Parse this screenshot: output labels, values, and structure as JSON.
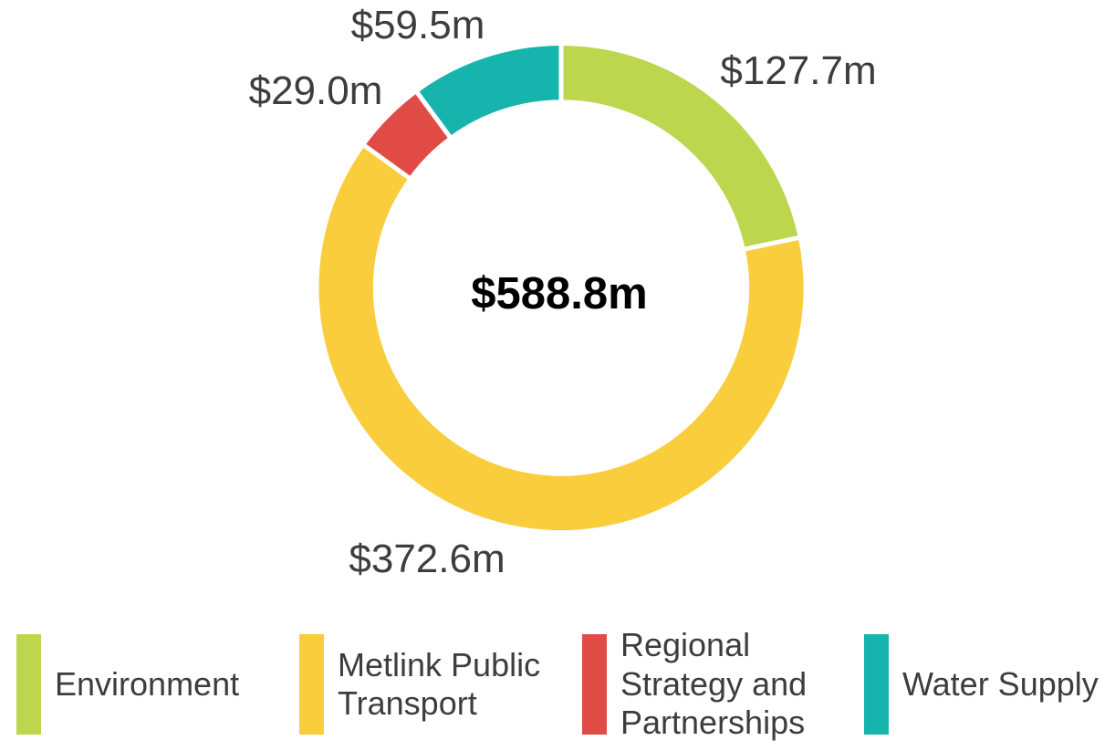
{
  "chart_data": {
    "type": "pie",
    "subtype": "donut",
    "title": "",
    "center_label": "$588.8m",
    "total_value": 588.8,
    "unit": "$m",
    "start_angle_deg": 0,
    "direction": "clockwise",
    "legend_position": "bottom",
    "inner_radius_ratio": 0.76,
    "segments": [
      {
        "label": "Environment",
        "value": 127.7,
        "display": "$127.7m",
        "color": "#bcd64d"
      },
      {
        "label": "Metlink Public Transport",
        "value": 372.6,
        "display": "$372.6m",
        "color": "#f9cd3b"
      },
      {
        "label": "Regional Strategy and Partnerships",
        "value": 29.0,
        "display": "$29.0m",
        "color": "#e04b45"
      },
      {
        "label": "Water Supply",
        "value": 59.5,
        "display": "$59.5m",
        "color": "#17b4ad"
      }
    ],
    "colors": {
      "label_text": "#3d3d3d",
      "center_text": "#000000",
      "segment_border": "#ffffff"
    }
  }
}
